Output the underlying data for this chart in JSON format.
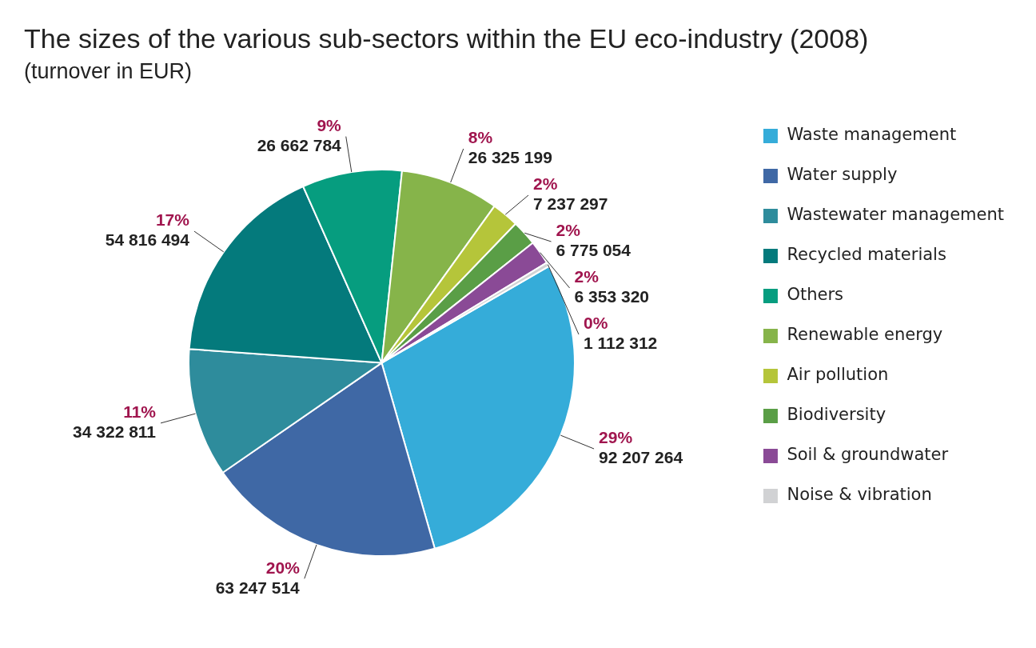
{
  "chart_data": {
    "type": "pie",
    "title": "The sizes of the various sub-sectors within the EU eco-industry (2008)",
    "subtitle": "(turnover in EUR)",
    "categories": [
      "Waste management",
      "Water supply",
      "Wastewater management",
      "Recycled materials",
      "Others",
      "Renewable energy",
      "Air pollution",
      "Biodiversity",
      "Soil & groundwater",
      "Noise & vibration"
    ],
    "values": [
      92207264,
      63247514,
      34322811,
      54816494,
      26662784,
      26325199,
      7237297,
      6775054,
      6353320,
      1112312
    ],
    "colors": [
      "#35acd9",
      "#3f68a5",
      "#2e8c9c",
      "#047a7c",
      "#069d7f",
      "#86b44a",
      "#b5c53a",
      "#5a9e46",
      "#8a4a96",
      "#d1d2d4"
    ],
    "value_labels": [
      "29%\n92 207 264",
      "20%\n63 247 514",
      "11%\n34 322 811",
      "17%\n54 816 494",
      "9%\n26 662 784",
      "8%\n26 325 199",
      "2%\n7 237 297",
      "2%\n6 775 054",
      "2%\n6 353 320",
      "0%\n1 112 312"
    ],
    "legend": "right"
  }
}
